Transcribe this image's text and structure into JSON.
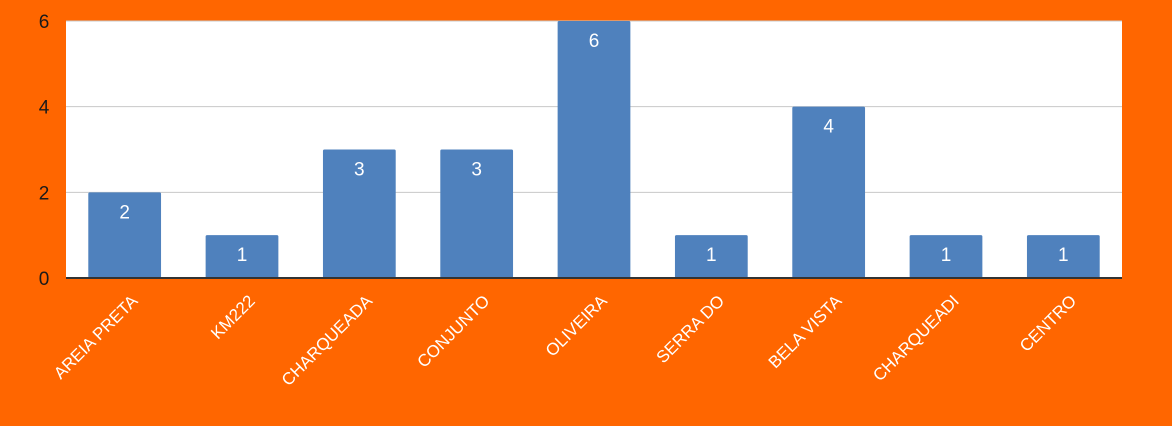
{
  "chart_data": {
    "type": "bar",
    "title": "",
    "xlabel": "",
    "ylabel": "",
    "categories": [
      "AREIA PRETA",
      "KM222",
      "CHARQUEADA",
      "CONJUNTO",
      "OLIVEIRA",
      "SERRA DO",
      "BELA VISTA",
      "CHARQUEADI",
      "CENTRO"
    ],
    "values": [
      2,
      1,
      3,
      3,
      6,
      1,
      4,
      1,
      1
    ],
    "ylim": [
      0,
      6
    ],
    "yticks": [
      0,
      2,
      4,
      6
    ],
    "grid": true,
    "data_labels": true,
    "legend": "none",
    "colors": {
      "background": "#ff6600",
      "plot_area": "#ffffff",
      "bar": "#4f81bd",
      "gridline": "#c8c8c8",
      "axis": "#333333",
      "bar_label": "#ffffff",
      "category_label": "#ffffff",
      "tick_label": "#1a1a1a"
    }
  }
}
